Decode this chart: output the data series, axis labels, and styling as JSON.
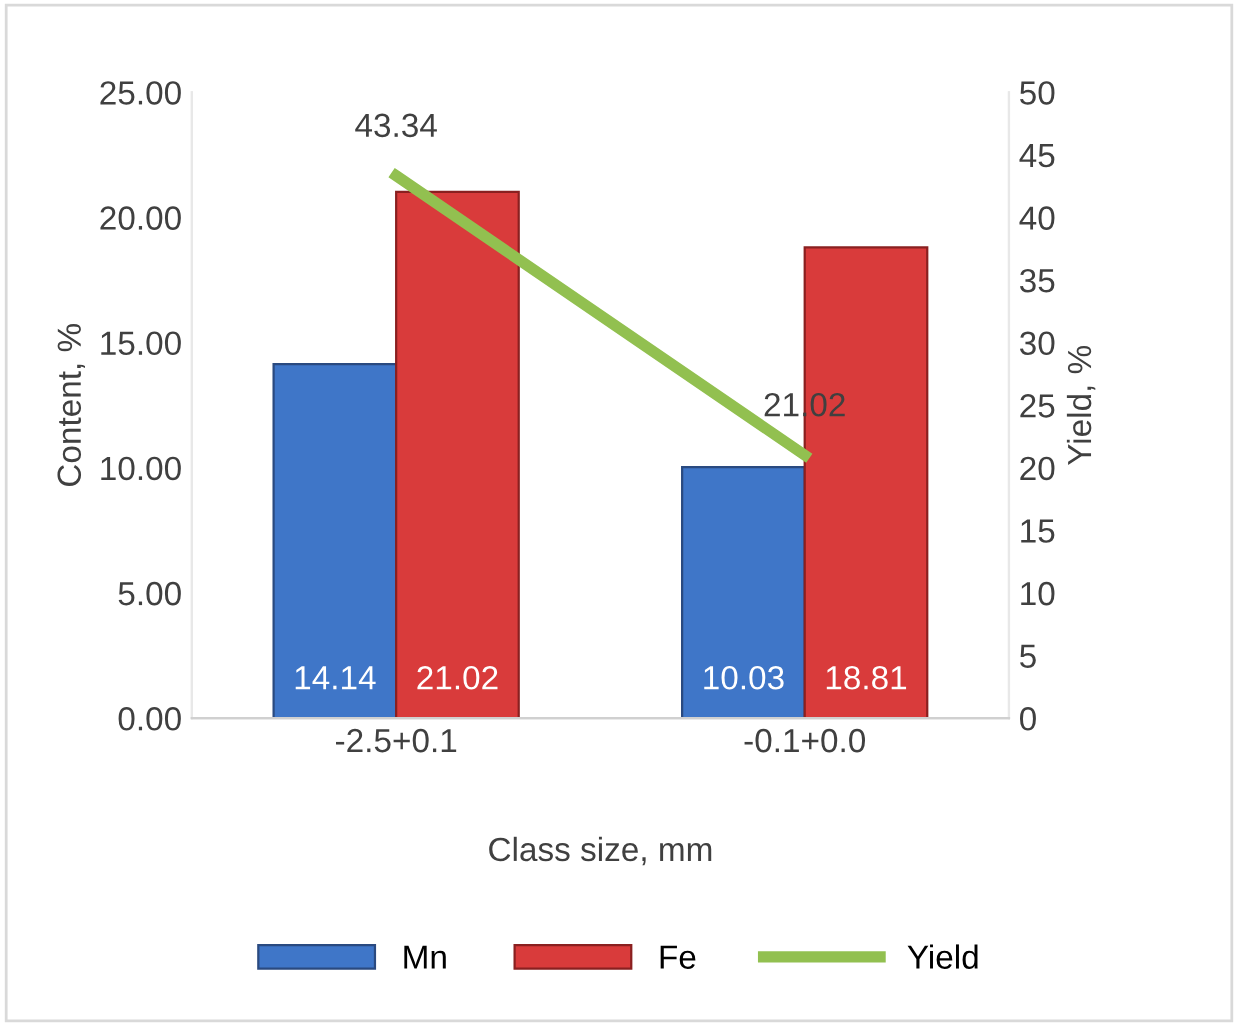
{
  "chart_data": {
    "type": "bar",
    "xlabel": "Class size, mm",
    "ylabel": "Content, %",
    "y2label": "Yield, %",
    "categories": [
      "-2.5+0.1",
      "-0.1+0.0"
    ],
    "series": [
      {
        "name": "Mn",
        "color": "#3f76c8",
        "values": [
          14.14,
          10.03
        ]
      },
      {
        "name": "Fe",
        "color": "#d93b3b",
        "values": [
          21.02,
          18.81
        ]
      },
      {
        "name": "Yield",
        "type": "line",
        "axis": "y2",
        "color": "#92c050",
        "values": [
          43.34,
          21.02
        ]
      }
    ],
    "ylim": [
      0,
      25
    ],
    "yticks": [
      {
        "value": 0,
        "label": "0.00"
      },
      {
        "value": 5,
        "label": "5.00"
      },
      {
        "value": 10,
        "label": "10.00"
      },
      {
        "value": 15,
        "label": "15.00"
      },
      {
        "value": 20,
        "label": "20.00"
      },
      {
        "value": 25,
        "label": "25.00"
      }
    ],
    "y2lim": [
      0,
      50
    ],
    "y2ticks": [
      0,
      5,
      10,
      15,
      20,
      25,
      30,
      35,
      40,
      45,
      50
    ],
    "data_labels": true,
    "legend": "bottom",
    "grid": false
  }
}
